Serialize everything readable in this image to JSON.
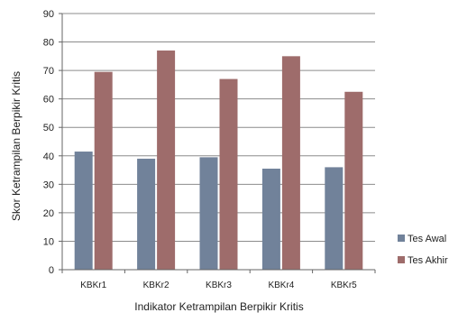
{
  "chart_data": {
    "type": "bar",
    "categories": [
      "KBKr1",
      "KBKr2",
      "KBKr3",
      "KBKr4",
      "KBKr5"
    ],
    "series": [
      {
        "name": "Tes Awal",
        "values": [
          41.5,
          39,
          39.5,
          35.5,
          36
        ],
        "color": "#71829a"
      },
      {
        "name": "Tes Akhir",
        "values": [
          69.5,
          77,
          67,
          75,
          62.5
        ],
        "color": "#9e6c6b"
      }
    ],
    "xlabel": "Indikator Ketrampilan Berpikir Kritis",
    "ylabel": "Skor Ketrampilan Berpikir Kritis",
    "ylim": [
      0,
      90
    ],
    "yticks": [
      0,
      10,
      20,
      30,
      40,
      50,
      60,
      70,
      80,
      90
    ],
    "grid": true,
    "legend_position": "right"
  }
}
